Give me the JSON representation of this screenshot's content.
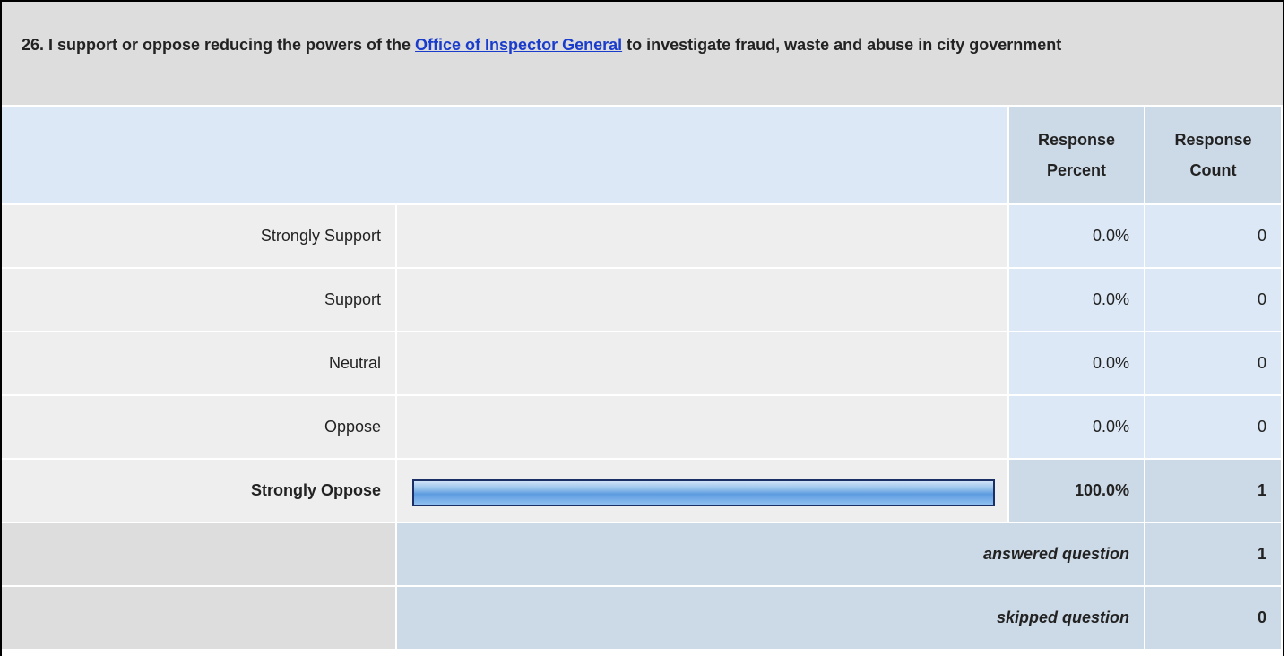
{
  "question": {
    "title_before": "26. I support or oppose reducing the powers of the ",
    "link": "Office of Inspector General",
    "title_after": " to investigate fraud, waste and abuse in city government"
  },
  "columns": [
    "Response Percent",
    "Response Count"
  ],
  "rows": [
    {
      "label": "Strongly Support",
      "percent": 0,
      "percent_label": "0.0%",
      "count": 0,
      "bold": false
    },
    {
      "label": "Support",
      "percent": 0,
      "percent_label": "0.0%",
      "count": 0,
      "bold": false
    },
    {
      "label": "Neutral",
      "percent": 0,
      "percent_label": "0.0%",
      "count": 0,
      "bold": false
    },
    {
      "label": "Oppose",
      "percent": 0,
      "percent_label": "0.0%",
      "count": 0,
      "bold": false
    },
    {
      "label": "Strongly Oppose",
      "percent": 100,
      "percent_label": "100.0%",
      "count": 1,
      "bold": true
    }
  ],
  "answered": {
    "label": "answered question",
    "count": 1
  },
  "skipped": {
    "label": "skipped question",
    "count": 0
  }
}
